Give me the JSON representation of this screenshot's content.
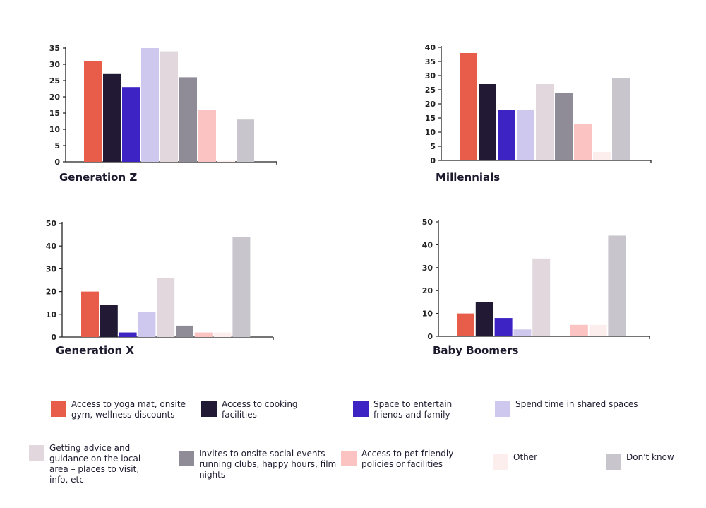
{
  "colors": [
    "#e85c4a",
    "#221a35",
    "#3d22c4",
    "#cfc8ee",
    "#e2d7dc",
    "#8f8b97",
    "#fcc3c3",
    "#fdeeee",
    "#c8c6cc"
  ],
  "legend": [
    "Access to yoga mat, onsite gym, wellness discounts",
    "Access to cooking facilities",
    "Space to entertain friends and family",
    "Spend time in shared spaces",
    "Getting advice and guidance on the local area – places to visit, info, etc",
    "Invites to onsite social events – running clubs, happy hours, film nights",
    "Access to pet-friendly policies or facilities",
    "Other",
    "Don't know"
  ],
  "chart_data": [
    {
      "type": "bar",
      "title": "Generation Z",
      "ylim": [
        0,
        35
      ],
      "yticks": [
        0,
        5,
        10,
        15,
        20,
        25,
        30,
        35
      ],
      "values": [
        31,
        27,
        23,
        35,
        34,
        26,
        16,
        0.3,
        13
      ]
    },
    {
      "type": "bar",
      "title": "Millennials",
      "ylim": [
        0,
        40
      ],
      "yticks": [
        0,
        5,
        10,
        15,
        20,
        25,
        30,
        35,
        40
      ],
      "values": [
        38,
        27,
        18,
        18,
        27,
        24,
        13,
        3,
        29
      ]
    },
    {
      "type": "bar",
      "title": "Generation X",
      "ylim": [
        0,
        50
      ],
      "yticks": [
        0,
        10,
        20,
        30,
        40,
        50
      ],
      "values": [
        20,
        14,
        2,
        11,
        26,
        5,
        2,
        2,
        44
      ]
    },
    {
      "type": "bar",
      "title": "Baby Boomers",
      "ylim": [
        0,
        50
      ],
      "yticks": [
        0,
        10,
        20,
        30,
        40,
        50
      ],
      "values": [
        10,
        15,
        8,
        3,
        34,
        0,
        5,
        5,
        44
      ]
    }
  ]
}
